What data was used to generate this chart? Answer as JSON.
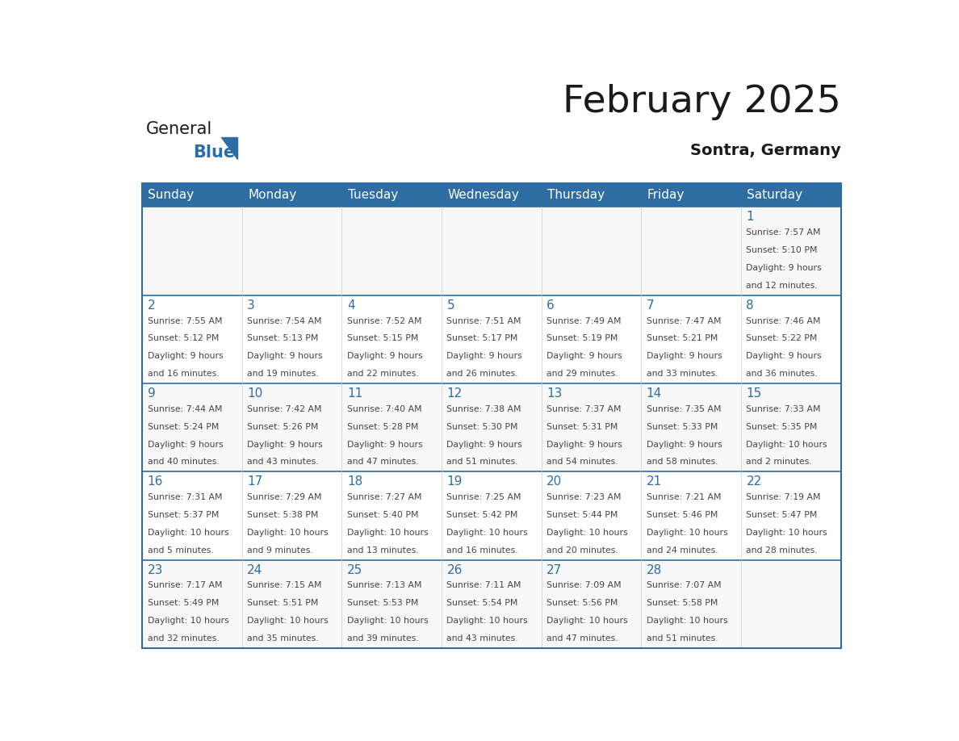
{
  "title": "February 2025",
  "subtitle": "Sontra, Germany",
  "days_of_week": [
    "Sunday",
    "Monday",
    "Tuesday",
    "Wednesday",
    "Thursday",
    "Friday",
    "Saturday"
  ],
  "header_bg": "#2E6DA4",
  "header_text_color": "#FFFFFF",
  "cell_bg_even": "#F8F8F8",
  "cell_bg_odd": "#FFFFFF",
  "border_color": "#2E6DA4",
  "day_number_color": "#2E6DA4",
  "text_color": "#444444",
  "logo_general_color": "#1a1a1a",
  "logo_blue_color": "#2E6DA4",
  "calendar_data": {
    "1": {
      "sunrise": "7:57 AM",
      "sunset": "5:10 PM",
      "daylight": "9 hours and 12 minutes."
    },
    "2": {
      "sunrise": "7:55 AM",
      "sunset": "5:12 PM",
      "daylight": "9 hours and 16 minutes."
    },
    "3": {
      "sunrise": "7:54 AM",
      "sunset": "5:13 PM",
      "daylight": "9 hours and 19 minutes."
    },
    "4": {
      "sunrise": "7:52 AM",
      "sunset": "5:15 PM",
      "daylight": "9 hours and 22 minutes."
    },
    "5": {
      "sunrise": "7:51 AM",
      "sunset": "5:17 PM",
      "daylight": "9 hours and 26 minutes."
    },
    "6": {
      "sunrise": "7:49 AM",
      "sunset": "5:19 PM",
      "daylight": "9 hours and 29 minutes."
    },
    "7": {
      "sunrise": "7:47 AM",
      "sunset": "5:21 PM",
      "daylight": "9 hours and 33 minutes."
    },
    "8": {
      "sunrise": "7:46 AM",
      "sunset": "5:22 PM",
      "daylight": "9 hours and 36 minutes."
    },
    "9": {
      "sunrise": "7:44 AM",
      "sunset": "5:24 PM",
      "daylight": "9 hours and 40 minutes."
    },
    "10": {
      "sunrise": "7:42 AM",
      "sunset": "5:26 PM",
      "daylight": "9 hours and 43 minutes."
    },
    "11": {
      "sunrise": "7:40 AM",
      "sunset": "5:28 PM",
      "daylight": "9 hours and 47 minutes."
    },
    "12": {
      "sunrise": "7:38 AM",
      "sunset": "5:30 PM",
      "daylight": "9 hours and 51 minutes."
    },
    "13": {
      "sunrise": "7:37 AM",
      "sunset": "5:31 PM",
      "daylight": "9 hours and 54 minutes."
    },
    "14": {
      "sunrise": "7:35 AM",
      "sunset": "5:33 PM",
      "daylight": "9 hours and 58 minutes."
    },
    "15": {
      "sunrise": "7:33 AM",
      "sunset": "5:35 PM",
      "daylight": "10 hours and 2 minutes."
    },
    "16": {
      "sunrise": "7:31 AM",
      "sunset": "5:37 PM",
      "daylight": "10 hours and 5 minutes."
    },
    "17": {
      "sunrise": "7:29 AM",
      "sunset": "5:38 PM",
      "daylight": "10 hours and 9 minutes."
    },
    "18": {
      "sunrise": "7:27 AM",
      "sunset": "5:40 PM",
      "daylight": "10 hours and 13 minutes."
    },
    "19": {
      "sunrise": "7:25 AM",
      "sunset": "5:42 PM",
      "daylight": "10 hours and 16 minutes."
    },
    "20": {
      "sunrise": "7:23 AM",
      "sunset": "5:44 PM",
      "daylight": "10 hours and 20 minutes."
    },
    "21": {
      "sunrise": "7:21 AM",
      "sunset": "5:46 PM",
      "daylight": "10 hours and 24 minutes."
    },
    "22": {
      "sunrise": "7:19 AM",
      "sunset": "5:47 PM",
      "daylight": "10 hours and 28 minutes."
    },
    "23": {
      "sunrise": "7:17 AM",
      "sunset": "5:49 PM",
      "daylight": "10 hours and 32 minutes."
    },
    "24": {
      "sunrise": "7:15 AM",
      "sunset": "5:51 PM",
      "daylight": "10 hours and 35 minutes."
    },
    "25": {
      "sunrise": "7:13 AM",
      "sunset": "5:53 PM",
      "daylight": "10 hours and 39 minutes."
    },
    "26": {
      "sunrise": "7:11 AM",
      "sunset": "5:54 PM",
      "daylight": "10 hours and 43 minutes."
    },
    "27": {
      "sunrise": "7:09 AM",
      "sunset": "5:56 PM",
      "daylight": "10 hours and 47 minutes."
    },
    "28": {
      "sunrise": "7:07 AM",
      "sunset": "5:58 PM",
      "daylight": "10 hours and 51 minutes."
    }
  },
  "week_layout": [
    [
      null,
      null,
      null,
      null,
      null,
      null,
      1
    ],
    [
      2,
      3,
      4,
      5,
      6,
      7,
      8
    ],
    [
      9,
      10,
      11,
      12,
      13,
      14,
      15
    ],
    [
      16,
      17,
      18,
      19,
      20,
      21,
      22
    ],
    [
      23,
      24,
      25,
      26,
      27,
      28,
      null
    ]
  ]
}
